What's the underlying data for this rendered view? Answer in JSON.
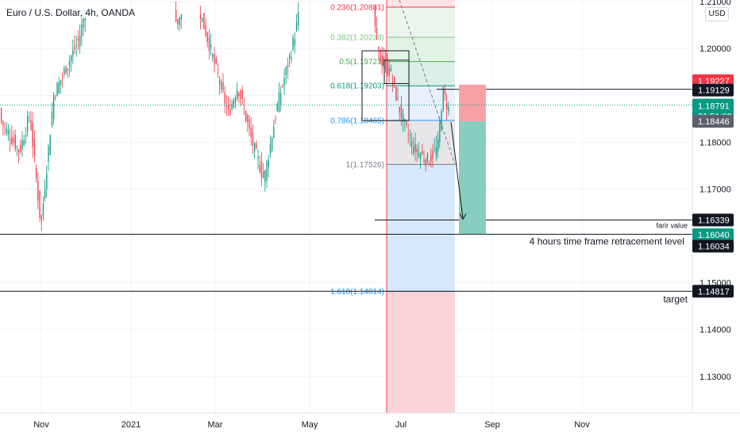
{
  "header": {
    "symbol_title": "Euro / U.S. Dollar, 4h, OANDA",
    "currency": "USD"
  },
  "chart_data": {
    "type": "candlestick",
    "symbol": "Euro / U.S. Dollar",
    "interval": "4h",
    "source": "OANDA",
    "price_range": [
      1.1215,
      1.1225
    ],
    "ylim": [
      1.1225,
      1.2122
    ],
    "y_ticks": [
      "1.21000",
      "1.20000",
      "1.18000",
      "1.17000",
      "1.15000",
      "1.14000",
      "1.13000"
    ],
    "x_ticks": [
      "Nov",
      "2021",
      "Mar",
      "May",
      "Jul",
      "Sep",
      "Nov"
    ],
    "fib_retracement": [
      {
        "ratio": "0.236",
        "price": 1.20881,
        "label": "0.236(1.20881)",
        "color": "#f23645"
      },
      {
        "ratio": "0.382",
        "price": 1.20238,
        "label": "0.382(1.20238)",
        "color": "#81c784"
      },
      {
        "ratio": "0.5",
        "price": 1.19721,
        "label": "0.5(1.19721)",
        "color": "#4caf50"
      },
      {
        "ratio": "0.618",
        "price": 1.19203,
        "label": "0.618(1.19203)",
        "color": "#089981"
      },
      {
        "ratio": "0.786",
        "price": 1.18465,
        "label": "0.786(1.18465)",
        "color": "#2196f3"
      },
      {
        "ratio": "1",
        "price": 1.17526,
        "label": "1(1.17526)",
        "color": "#787b86"
      },
      {
        "ratio": "1.618",
        "price": 1.14814,
        "label": "1.618(1.14814)",
        "color": "#2196f3"
      }
    ],
    "horizontal_levels": [
      {
        "price": 1.16339,
        "label": "farir value"
      },
      {
        "price": 1.16034,
        "label": "4 hours time frame retracement level"
      },
      {
        "price": 1.14817,
        "label": "target"
      }
    ],
    "short_position": {
      "stop": 1.19227,
      "entry": 1.18446,
      "target": 1.1604
    },
    "price_badges": [
      {
        "value": "1.19227",
        "color": "#f23645"
      },
      {
        "value": "1.19129",
        "color": "#131722"
      },
      {
        "value": "1.18791",
        "sub": "01:51:09",
        "color": "#089981"
      },
      {
        "value": "1.18446",
        "color": "#5d606b"
      },
      {
        "value": "1.16339",
        "color": "#131722"
      },
      {
        "value": "1.16040",
        "color": "#089981"
      },
      {
        "value": "1.16034",
        "color": "#131722"
      },
      {
        "value": "1.14817",
        "color": "#131722"
      }
    ],
    "colors": {
      "up": "#089981",
      "down": "#f23645",
      "grid": "#f0f3fa",
      "axis_text": "#131722"
    }
  }
}
